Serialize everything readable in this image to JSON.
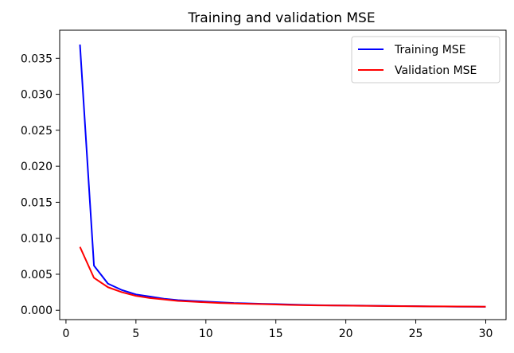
{
  "chart_data": {
    "type": "line",
    "title": "Training and validation MSE",
    "xlabel": "",
    "ylabel": "",
    "xlim": [
      -0.45,
      31.45
    ],
    "ylim": [
      -0.0013,
      0.0389
    ],
    "grid": false,
    "legend_position": "top-right",
    "x": [
      1,
      2,
      3,
      4,
      5,
      6,
      7,
      8,
      9,
      10,
      11,
      12,
      13,
      14,
      15,
      16,
      17,
      18,
      19,
      20,
      21,
      22,
      23,
      24,
      25,
      26,
      27,
      28,
      29,
      30
    ],
    "series": [
      {
        "name": "Training MSE",
        "color": "#0000ff",
        "values": [
          0.0369,
          0.0062,
          0.0037,
          0.0028,
          0.0022,
          0.0019,
          0.0016,
          0.0014,
          0.0013,
          0.0012,
          0.0011,
          0.001,
          0.00095,
          0.0009,
          0.00085,
          0.0008,
          0.00075,
          0.0007,
          0.00068,
          0.00066,
          0.00064,
          0.00062,
          0.0006,
          0.00058,
          0.00056,
          0.00054,
          0.00052,
          0.0005,
          0.00049,
          0.00048
        ]
      },
      {
        "name": "Validation MSE",
        "color": "#ff0000",
        "values": [
          0.0088,
          0.0045,
          0.0032,
          0.0025,
          0.002,
          0.0017,
          0.0015,
          0.0013,
          0.0012,
          0.0011,
          0.001,
          0.00095,
          0.0009,
          0.00085,
          0.0008,
          0.00075,
          0.0007,
          0.00068,
          0.00066,
          0.00064,
          0.00062,
          0.0006,
          0.00058,
          0.00056,
          0.00055,
          0.00054,
          0.00053,
          0.00052,
          0.00051,
          0.0005
        ]
      }
    ],
    "x_ticks": [
      0,
      5,
      10,
      15,
      20,
      25,
      30
    ],
    "x_tick_labels": [
      "0",
      "5",
      "10",
      "15",
      "20",
      "25",
      "30"
    ],
    "y_ticks": [
      0,
      0.005,
      0.01,
      0.015,
      0.02,
      0.025,
      0.03,
      0.035
    ],
    "y_tick_labels": [
      "0.000",
      "0.005",
      "0.010",
      "0.015",
      "0.020",
      "0.025",
      "0.030",
      "0.035"
    ]
  }
}
